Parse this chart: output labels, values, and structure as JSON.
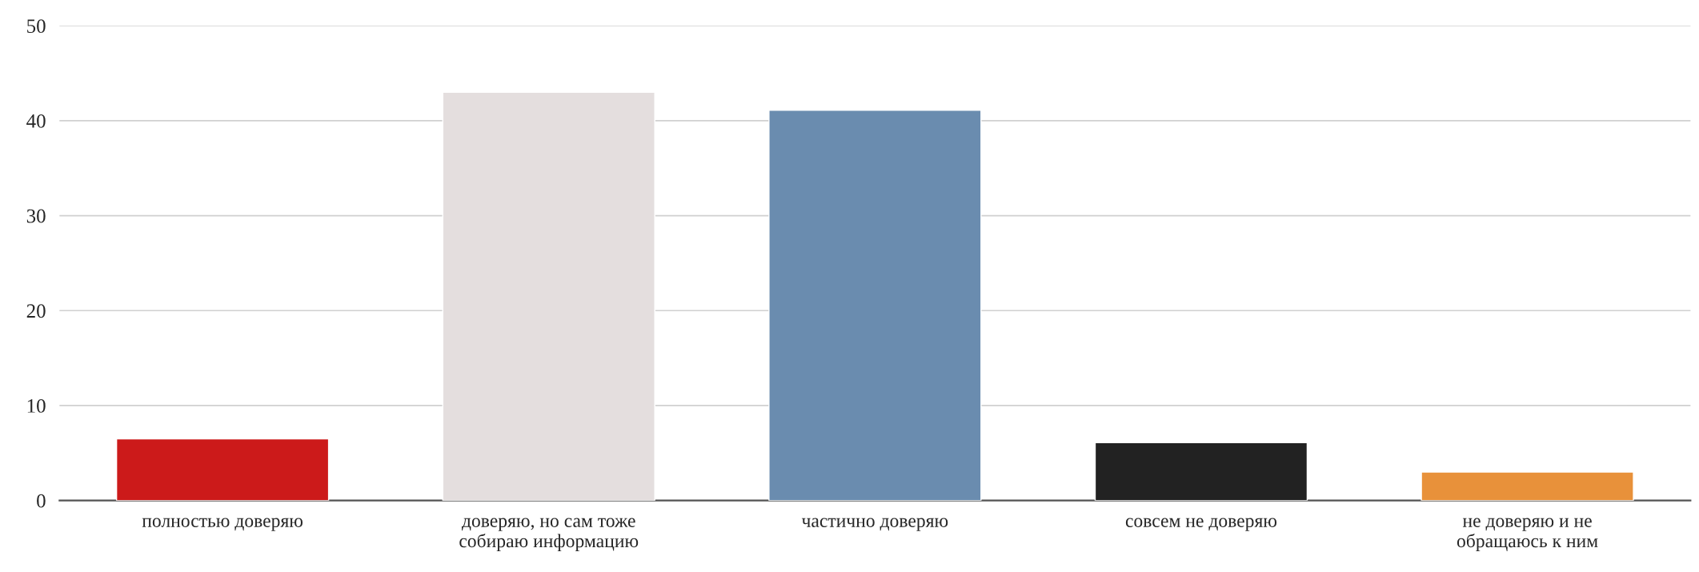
{
  "chart_data": {
    "type": "bar",
    "categories": [
      "полностью доверяю",
      "доверяю, но сам тоже\nсобираю информацию",
      "частично доверяю",
      "совсем не доверяю",
      "не доверяю и не\nобращаюсь к ним"
    ],
    "values": [
      6.5,
      43,
      41.1,
      6.1,
      3
    ],
    "colors": [
      "#cc1a1a",
      "#e4dede",
      "#6a8caf",
      "#222222",
      "#e8913a"
    ],
    "ylim": [
      0,
      50
    ],
    "yticks": [
      0,
      10,
      20,
      30,
      40,
      50
    ],
    "grid": "y",
    "legend": false
  }
}
